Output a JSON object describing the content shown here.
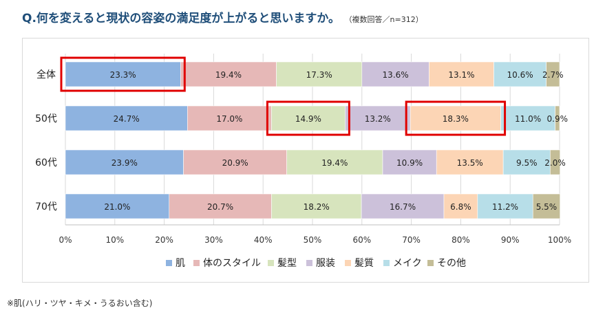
{
  "title": "Q.何を変えると現状の容姿の満足度が上がると思いますか。",
  "subtitle": "（複数回答／n=312）",
  "footnote": "※肌(ハリ・ツヤ・キメ・うるおい含む)",
  "chart_data": {
    "type": "bar",
    "orientation": "horizontal",
    "stacked": true,
    "percent_stacked": true,
    "categories": [
      "全体",
      "50代",
      "60代",
      "70代"
    ],
    "series": [
      {
        "name": "肌",
        "color": "#8eb3e0",
        "values": [
          23.3,
          24.7,
          23.9,
          21.0
        ]
      },
      {
        "name": "体のスタイル",
        "color": "#e6b8b7",
        "values": [
          19.4,
          17.0,
          20.9,
          20.7
        ]
      },
      {
        "name": "髪型",
        "color": "#d7e4bd",
        "values": [
          17.3,
          14.9,
          19.4,
          18.2
        ]
      },
      {
        "name": "服装",
        "color": "#ccc1da",
        "values": [
          13.6,
          13.2,
          10.9,
          16.7
        ]
      },
      {
        "name": "髪質",
        "color": "#fcd5b5",
        "values": [
          13.1,
          18.3,
          13.5,
          6.8
        ]
      },
      {
        "name": "メイク",
        "color": "#b7dee8",
        "values": [
          10.6,
          11.0,
          9.5,
          11.2
        ]
      },
      {
        "name": "その他",
        "color": "#c4bd97",
        "values": [
          2.7,
          0.9,
          2.0,
          5.5
        ]
      }
    ],
    "data_labels": [
      [
        "23.3%",
        "19.4%",
        "17.3%",
        "13.6%",
        "13.1%",
        "10.6%",
        "2.7%"
      ],
      [
        "24.7%",
        "17.0%",
        "14.9%",
        "13.2%",
        "18.3%",
        "11.0%",
        "0.9%"
      ],
      [
        "23.9%",
        "20.9%",
        "19.4%",
        "10.9%",
        "13.5%",
        "9.5%",
        "2.0%"
      ],
      [
        "21.0%",
        "20.7%",
        "18.2%",
        "16.7%",
        "6.8%",
        "11.2%",
        "5.5%"
      ]
    ],
    "x_ticks": [
      "0%",
      "10%",
      "20%",
      "30%",
      "40%",
      "50%",
      "60%",
      "70%",
      "80%",
      "90%",
      "100%"
    ],
    "xlim": [
      0,
      100
    ],
    "grid": true,
    "legend_position": "bottom",
    "highlights": [
      {
        "category": "全体",
        "series": "肌",
        "color": "#e00000"
      },
      {
        "category": "50代",
        "series": "髪型",
        "color": "#e00000"
      },
      {
        "category": "50代",
        "series": "髪質",
        "color": "#e00000"
      }
    ]
  }
}
